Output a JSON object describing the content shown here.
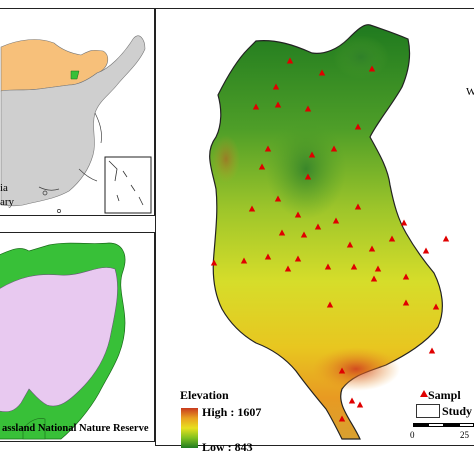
{
  "inset_china": {
    "label_line1": "ia",
    "label_line2": "ary"
  },
  "inset_reserve": {
    "title": "assland National Nature Reserve"
  },
  "main_map": {
    "north_label": "W"
  },
  "legend": {
    "elevation_title": "Elevation",
    "high_label": "High : 1607",
    "low_label": "Low : 843",
    "sample_label": "Sampl",
    "study_label": "Study",
    "scale_start": "0",
    "scale_mid": "25"
  },
  "colors": {
    "high": "#c83a1e",
    "mid": "#e8e020",
    "low": "#1f7a1f",
    "sample_marker": "#e00000",
    "inner_mongolia": "#f7c07a",
    "region_gray": "#cfcfcf",
    "reserve_green": "#38c038",
    "reserve_lilac": "#e8c9f0"
  }
}
